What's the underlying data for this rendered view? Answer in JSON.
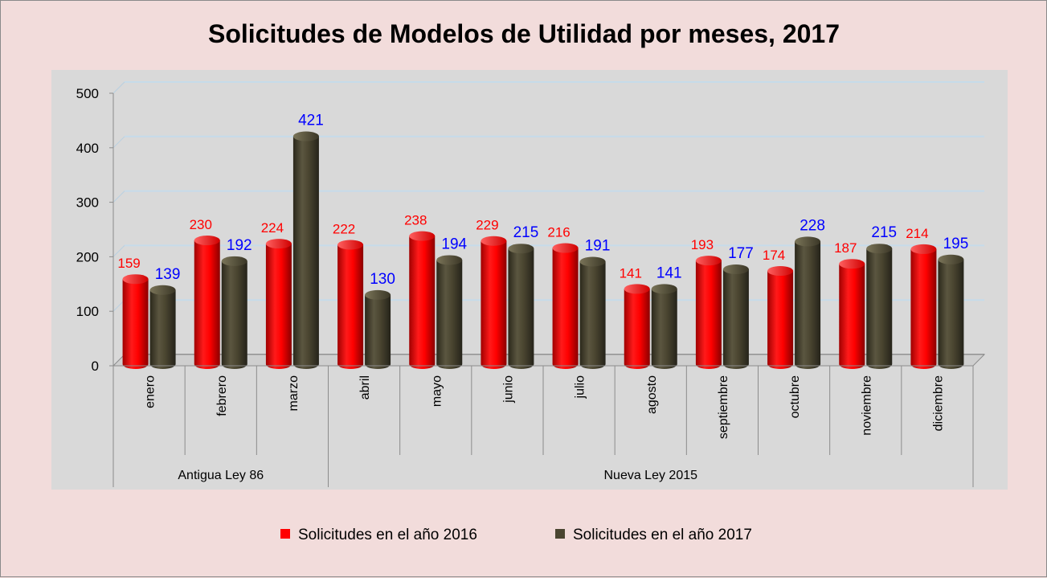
{
  "chart_data": {
    "type": "bar",
    "title": "Solicitudes de Modelos de Utilidad por meses, 2017",
    "categories": [
      "enero",
      "febrero",
      "marzo",
      "abril",
      "mayo",
      "junio",
      "julio",
      "agosto",
      "septiembre",
      "octubre",
      "noviembre",
      "diciembre"
    ],
    "groups": [
      {
        "label": "Antigua Ley 86",
        "count": 3
      },
      {
        "label": "Nueva Ley 2015",
        "count": 9
      }
    ],
    "series": [
      {
        "name": "Solicitudes en el año 2016",
        "color": "#ff0000",
        "label_color": "#ff0000",
        "values": [
          159,
          230,
          224,
          222,
          238,
          229,
          216,
          141,
          193,
          174,
          187,
          214
        ]
      },
      {
        "name": "Solicitudes en el año 2017",
        "color": "#4a4530",
        "label_color": "#0000ff",
        "values": [
          139,
          192,
          421,
          130,
          194,
          215,
          191,
          141,
          177,
          228,
          215,
          195
        ]
      }
    ],
    "ylim": [
      0,
      500
    ],
    "yticks": [
      0,
      100,
      200,
      300,
      400,
      500
    ],
    "ytick_labels": [
      "0",
      "100",
      "200",
      "300",
      "400",
      "500"
    ],
    "xlabel": "",
    "ylabel": "",
    "grid": true,
    "legend_position": "bottom"
  }
}
